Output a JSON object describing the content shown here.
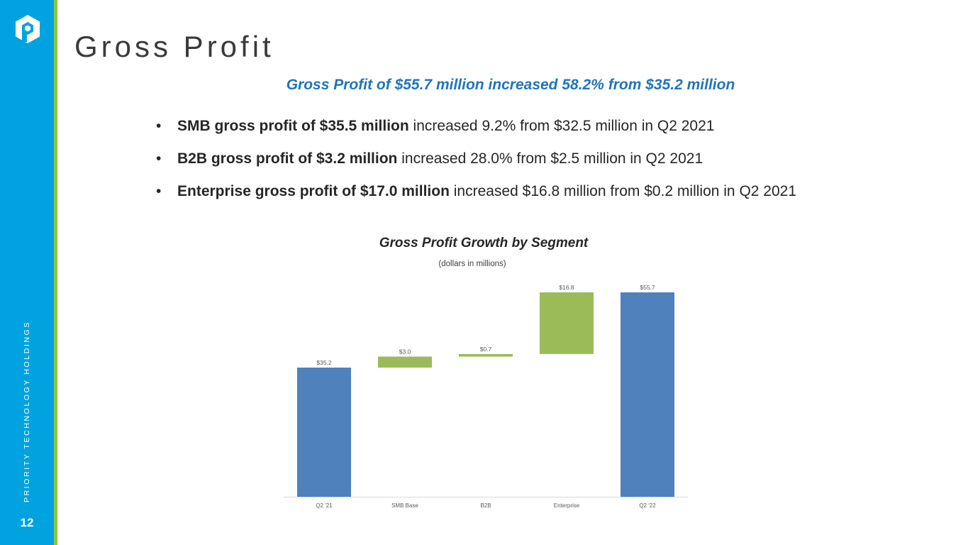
{
  "brand": {
    "vertical_text": "PRIORITY TECHNOLOGY HOLDINGS",
    "page_number": "12",
    "logo_icon": "priority-logo-icon",
    "colors": {
      "sidebar": "#00a3e0",
      "accent": "#8dc63f"
    }
  },
  "page_title": "Gross Profit",
  "subtitle": "Gross Profit of $55.7 million increased 58.2% from $35.2 million",
  "bullets": [
    {
      "bold": "SMB gross profit of $35.5 million",
      "rest": " increased 9.2% from $32.5 million in Q2 2021"
    },
    {
      "bold": "B2B gross profit of $3.2 million",
      "rest": " increased 28.0% from $2.5 million in Q2 2021"
    },
    {
      "bold": "Enterprise gross profit of $17.0 million",
      "rest": " increased $16.8 million from $0.2 million in Q2 2021"
    }
  ],
  "chart_data": {
    "type": "bar",
    "subtype": "waterfall",
    "title": "Gross Profit Growth by Segment",
    "subtitle": "(dollars in millions)",
    "categories": [
      "Q2 '21",
      "SMB Base",
      "B2B",
      "Enterprise",
      "Q2 '22"
    ],
    "values": [
      35.2,
      3.0,
      0.7,
      16.8,
      55.7
    ],
    "bar_kinds": [
      "total",
      "increment",
      "increment",
      "increment",
      "total"
    ],
    "data_labels": [
      "$35.2",
      "$3.0",
      "$0.7",
      "$16.8",
      "$55.7"
    ],
    "xlabel": "",
    "ylabel": "",
    "ylim": [
      0,
      55.7
    ],
    "grid": false,
    "legend": "none",
    "colors": {
      "total": "#4f81bd",
      "increment": "#9bbb59"
    }
  }
}
